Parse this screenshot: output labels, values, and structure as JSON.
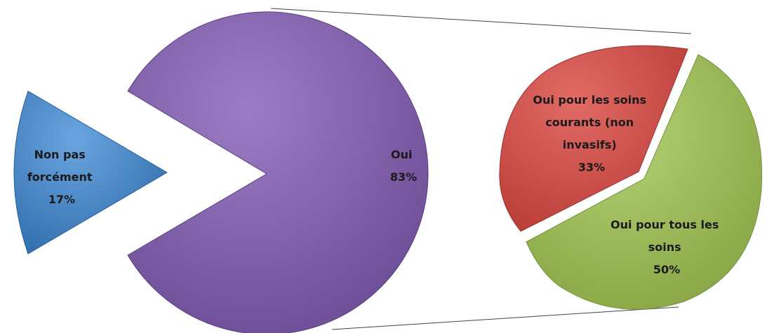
{
  "chart_data": {
    "type": "pie",
    "subtype": "pie-of-pie",
    "title": "",
    "main_pie": {
      "slices": [
        {
          "id": "oui",
          "label_lines": [
            "Oui",
            "83%"
          ],
          "value": 83,
          "color": "#7f5fa6",
          "exploded_to_secondary": true
        },
        {
          "id": "non",
          "label_lines": [
            "Non pas",
            "forcément",
            "17%"
          ],
          "value": 17,
          "color": "#4a86c5"
        }
      ]
    },
    "secondary_pie": {
      "slices": [
        {
          "id": "soins-courants",
          "label_lines": [
            "Oui pour les soins",
            "courants (non",
            "invasifs)",
            "33%"
          ],
          "value": 33,
          "color": "#d2504a"
        },
        {
          "id": "tous-soins",
          "label_lines": [
            "Oui pour tous les",
            "soins",
            "50%"
          ],
          "value": 50,
          "color": "#9bbb59"
        }
      ]
    },
    "legend": "none",
    "connector_lines": true
  }
}
